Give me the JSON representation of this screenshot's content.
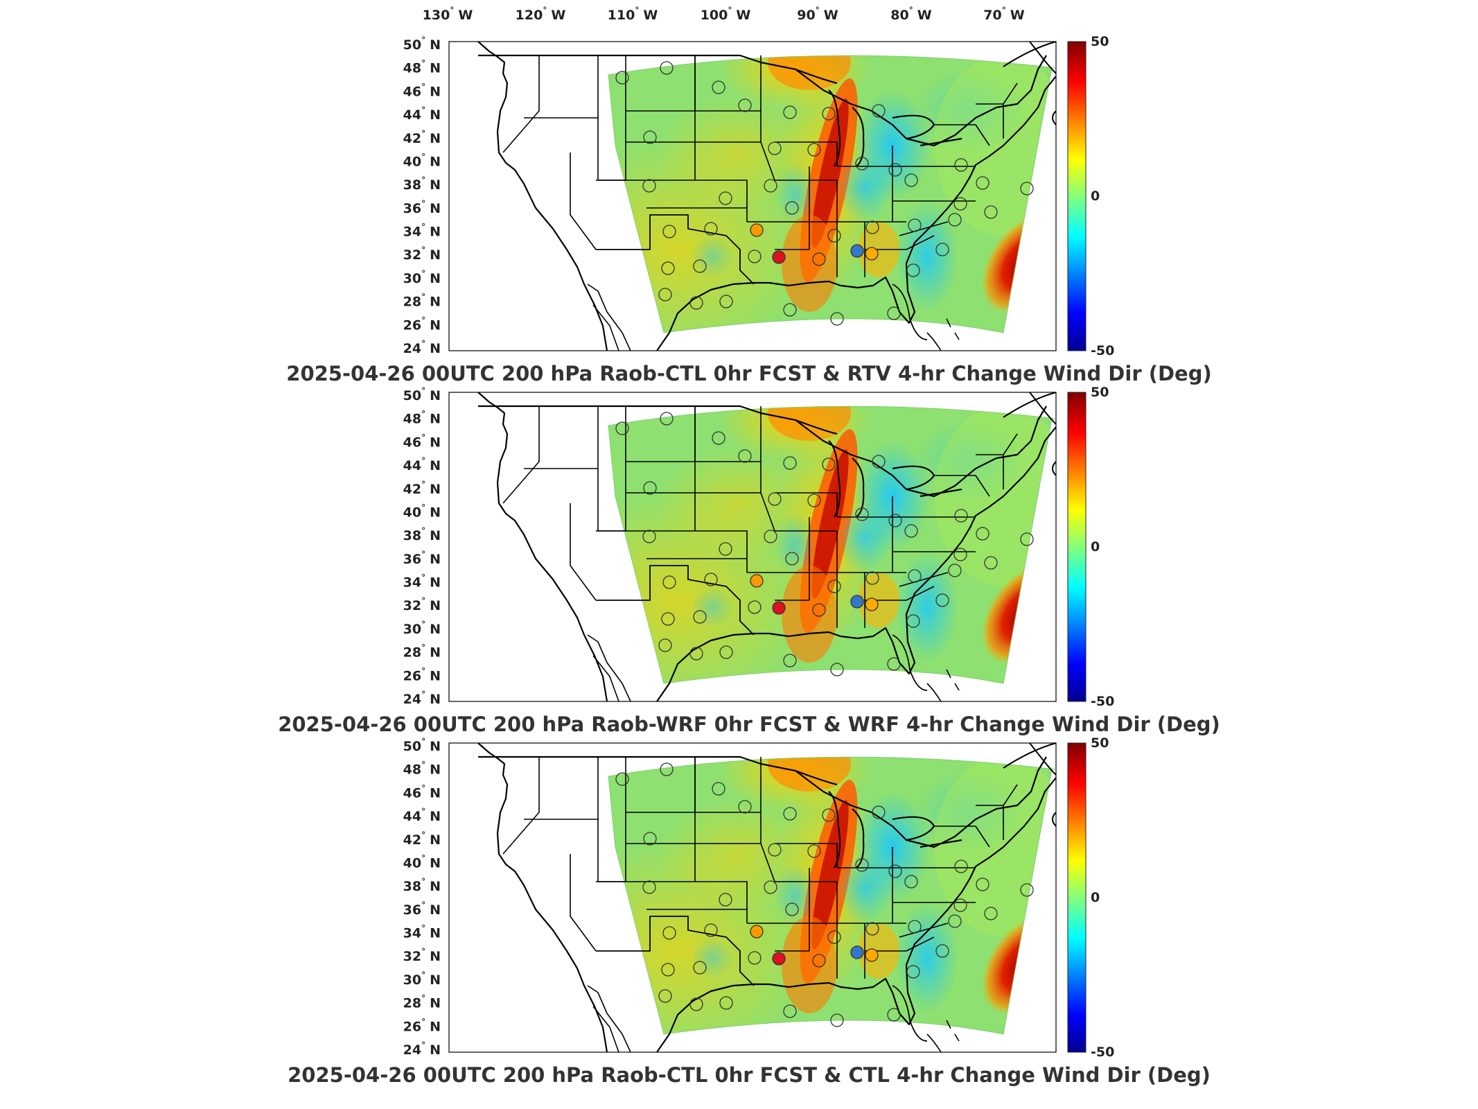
{
  "figure": {
    "lon_ticks": [
      "130",
      "120",
      "110",
      "100",
      "90",
      "80",
      "70"
    ],
    "lon_suffix": "W",
    "lat_ticks": [
      "50",
      "48",
      "46",
      "44",
      "42",
      "40",
      "38",
      "36",
      "34",
      "32",
      "30",
      "28",
      "26",
      "24"
    ],
    "lat_suffix": "N",
    "degree_symbol": "°",
    "colorbar": {
      "max": "50",
      "mid": "0",
      "min": "-50",
      "colors": [
        "#00008f",
        "#0000ff",
        "#00ffff",
        "#ffff00",
        "#ff0000",
        "#800000"
      ]
    },
    "panels": [
      {
        "title": "2025-04-26 00UTC 200 hPa Raob-CTL 0hr FCST & RTV 4-hr Change Wind Dir (Deg)"
      },
      {
        "title": "2025-04-26 00UTC 200 hPa Raob-WRF 0hr FCST & WRF 4-hr Change Wind Dir (Deg)"
      },
      {
        "title": "2025-04-26 00UTC 200 hPa Raob-CTL 0hr FCST & CTL 4-hr Change Wind Dir (Deg)"
      }
    ]
  },
  "map_data": {
    "projection": "Lambert conformal (CONUS)",
    "field": "4-hr change of wind direction (deg), colour scale -50 to 50",
    "markers": "circles at radiosonde (Raob) sites, coloured by Raob minus model wind direction",
    "features": [
      "state boundaries",
      "coastlines"
    ]
  }
}
